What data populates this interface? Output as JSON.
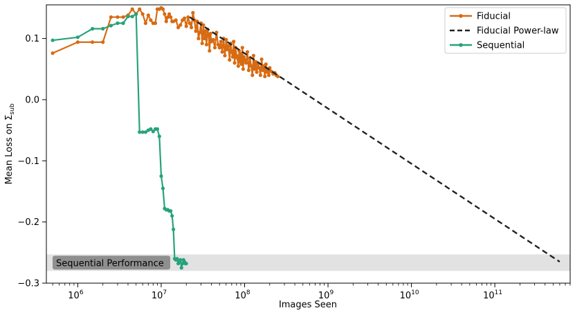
{
  "chart_data": {
    "type": "line",
    "xlabel": "Images Seen",
    "ylabel_main": "Mean Loss on Σ",
    "ylabel_sub": "sub",
    "x_scale": "log",
    "xlim": [
      420000,
      800000000000
    ],
    "ylim": [
      -0.3,
      0.155
    ],
    "x_ticks": [
      {
        "value": 1000000,
        "base": "10",
        "exp": "6"
      },
      {
        "value": 10000000,
        "base": "10",
        "exp": "7"
      },
      {
        "value": 100000000,
        "base": "10",
        "exp": "8"
      },
      {
        "value": 1000000000,
        "base": "10",
        "exp": "9"
      },
      {
        "value": 10000000000,
        "base": "10",
        "exp": "10"
      },
      {
        "value": 100000000000,
        "base": "10",
        "exp": "11"
      }
    ],
    "y_ticks": [
      {
        "value": 0.1,
        "label": "0.1"
      },
      {
        "value": 0.0,
        "label": "0.0"
      },
      {
        "value": -0.1,
        "label": "−0.1"
      },
      {
        "value": -0.2,
        "label": "−0.2"
      },
      {
        "value": -0.3,
        "label": "−0.3"
      }
    ],
    "band": {
      "y0": -0.28,
      "y1": -0.253,
      "label": "Sequential Performance",
      "color": "#e2e2e2",
      "label_bg": "#8f8f8f"
    },
    "legend_position": "top-right",
    "legend": [
      {
        "label": "Fiducial",
        "style": "line-marker",
        "color": "#d76b13"
      },
      {
        "label": "Fiducial Power-law",
        "style": "dashed",
        "color": "#222222"
      },
      {
        "label": "Sequential",
        "style": "line-marker",
        "color": "#27a27b"
      }
    ],
    "series": [
      {
        "name": "Fiducial",
        "color": "#d76b13",
        "x": [
          500000,
          1000000,
          1500000,
          2000000,
          2500000,
          3000000,
          3500000,
          4000000,
          4500000,
          5000000,
          5500000,
          6000000,
          6500000,
          7000000,
          7500000,
          8000000,
          8500000,
          9000000,
          9500000,
          10000000,
          10500000,
          11000000,
          11500000,
          12000000,
          12500000,
          13000000,
          13500000,
          14000000,
          15000000,
          16000000,
          17000000,
          18000000,
          19000000,
          20000000,
          21000000,
          22000000,
          23000000,
          24000000,
          25000000,
          26000000,
          27000000,
          28000000,
          29000000,
          30000000,
          31000000,
          32000000,
          33000000,
          34000000,
          35000000,
          36000000,
          37000000,
          38000000,
          39000000,
          40000000,
          42000000,
          44000000,
          46000000,
          48000000,
          50000000,
          52000000,
          54000000,
          56000000,
          58000000,
          60000000,
          62000000,
          64000000,
          66000000,
          68000000,
          70000000,
          72000000,
          74000000,
          76000000,
          78000000,
          80000000,
          82000000,
          84000000,
          86000000,
          88000000,
          90000000,
          92000000,
          94000000,
          96000000,
          98000000,
          100000000,
          104000000,
          108000000,
          112000000,
          116000000,
          120000000,
          124000000,
          128000000,
          132000000,
          136000000,
          140000000,
          145000000,
          150000000,
          155000000,
          160000000,
          165000000,
          170000000,
          175000000,
          180000000,
          185000000,
          190000000,
          195000000,
          200000000,
          210000000,
          220000000,
          230000000,
          240000000,
          250000000
        ],
        "y": [
          0.076,
          0.094,
          0.094,
          0.094,
          0.135,
          0.135,
          0.135,
          0.138,
          0.148,
          0.14,
          0.148,
          0.14,
          0.125,
          0.138,
          0.13,
          0.125,
          0.125,
          0.148,
          0.148,
          0.15,
          0.148,
          0.14,
          0.128,
          0.135,
          0.14,
          0.135,
          0.128,
          0.128,
          0.13,
          0.118,
          0.122,
          0.13,
          0.133,
          0.12,
          0.135,
          0.125,
          0.118,
          0.142,
          0.13,
          0.112,
          0.128,
          0.1,
          0.11,
          0.125,
          0.092,
          0.122,
          0.1,
          0.112,
          0.09,
          0.115,
          0.105,
          0.08,
          0.108,
          0.095,
          0.098,
          0.085,
          0.11,
          0.09,
          0.085,
          0.095,
          0.078,
          0.1,
          0.072,
          0.098,
          0.082,
          0.088,
          0.065,
          0.092,
          0.078,
          0.07,
          0.095,
          0.06,
          0.085,
          0.072,
          0.068,
          0.055,
          0.08,
          0.062,
          0.075,
          0.058,
          0.085,
          0.05,
          0.07,
          0.065,
          0.06,
          0.078,
          0.048,
          0.068,
          0.055,
          0.04,
          0.072,
          0.05,
          0.062,
          0.045,
          0.058,
          0.052,
          0.04,
          0.066,
          0.048,
          0.055,
          0.038,
          0.058,
          0.045,
          0.05,
          0.04,
          0.052,
          0.046,
          0.042,
          0.044,
          0.04,
          0.038
        ]
      },
      {
        "name": "Fiducial Power-law",
        "color": "#222222",
        "dashed": true,
        "x": [
          22000000,
          600000000000
        ],
        "y": [
          0.135,
          -0.265
        ]
      },
      {
        "name": "Sequential",
        "color": "#27a27b",
        "x": [
          500000,
          1000000,
          1500000,
          2000000,
          2500000,
          3000000,
          3500000,
          4000000,
          4500000,
          5000000,
          5500000,
          6000000,
          6500000,
          7000000,
          7500000,
          8000000,
          8500000,
          9000000,
          9500000,
          10000000,
          10500000,
          11000000,
          11500000,
          12000000,
          12500000,
          13000000,
          13500000,
          14000000,
          14500000,
          15000000,
          15500000,
          16000000,
          16500000,
          17000000,
          17500000,
          18000000,
          18500000,
          19000000,
          19500000,
          20000000
        ],
        "y": [
          0.097,
          0.102,
          0.116,
          0.116,
          0.121,
          0.125,
          0.125,
          0.136,
          0.136,
          0.14,
          -0.053,
          -0.053,
          -0.053,
          -0.05,
          -0.048,
          -0.052,
          -0.048,
          -0.048,
          -0.06,
          -0.125,
          -0.145,
          -0.178,
          -0.18,
          -0.18,
          -0.182,
          -0.182,
          -0.19,
          -0.212,
          -0.26,
          -0.262,
          -0.26,
          -0.268,
          -0.265,
          -0.262,
          -0.275,
          -0.268,
          -0.262,
          -0.265,
          -0.268,
          -0.268
        ]
      }
    ]
  }
}
